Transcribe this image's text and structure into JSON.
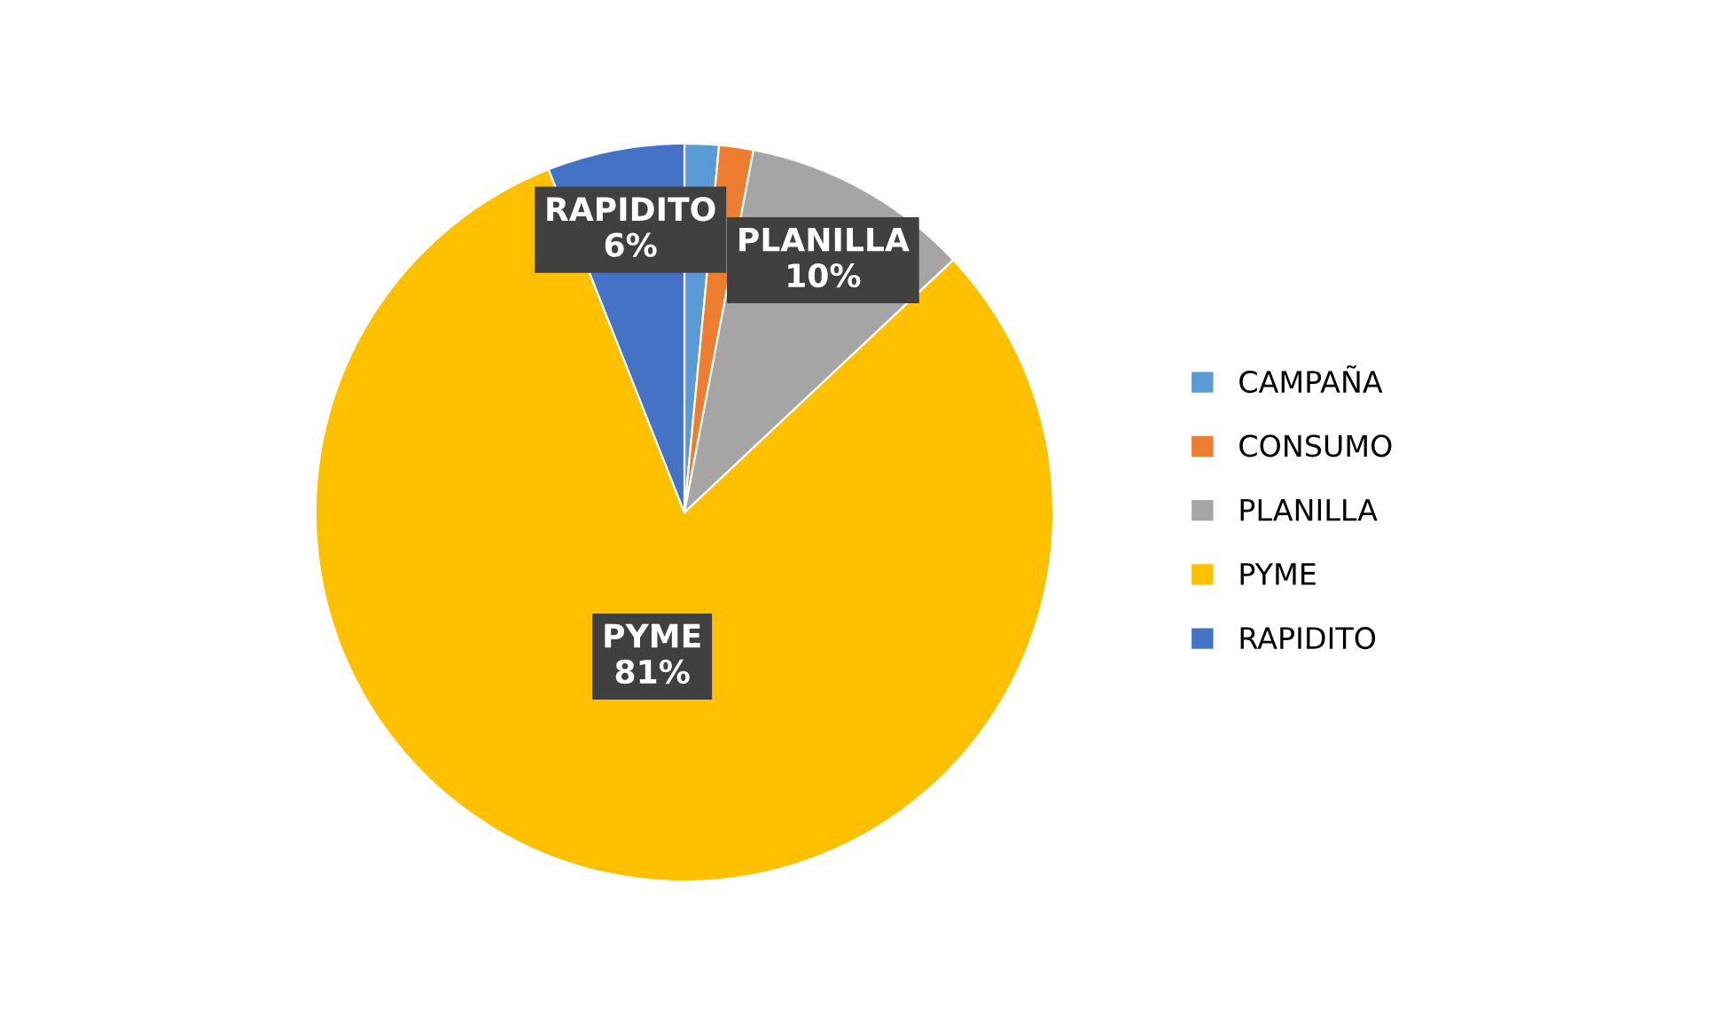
{
  "chart_data": {
    "type": "pie",
    "categories": [
      "CAMPAÑA",
      "CONSUMO",
      "PLANILLA",
      "PYME",
      "RAPIDITO"
    ],
    "values": [
      1.5,
      1.5,
      10,
      81,
      6
    ],
    "colors": [
      "#5b9bd5",
      "#ed7d31",
      "#a5a5a5",
      "#ffc000",
      "#4472c4"
    ],
    "value_labels": [
      null,
      null,
      "10%",
      "81%",
      "6%"
    ],
    "legend": "right"
  }
}
